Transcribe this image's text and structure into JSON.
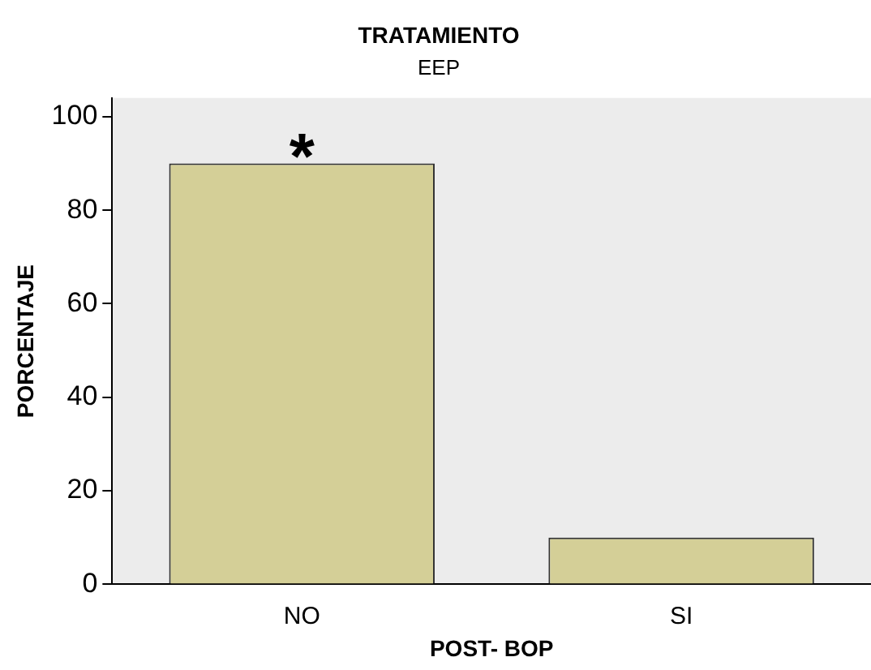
{
  "chart_data": {
    "type": "bar",
    "title": "TRATAMIENTO",
    "subtitle": "EEP",
    "xlabel": "POST- BOP",
    "ylabel": "PORCENTAJE",
    "categories": [
      "NO",
      "SI"
    ],
    "values": [
      90,
      10
    ],
    "color": "#d4cf97",
    "ylim": [
      0,
      104
    ],
    "yticks": [
      0,
      20,
      40,
      60,
      80,
      100
    ],
    "grid": false,
    "legend": false,
    "annotations": [
      {
        "text": "*",
        "x": "NO",
        "y": 90
      }
    ]
  }
}
